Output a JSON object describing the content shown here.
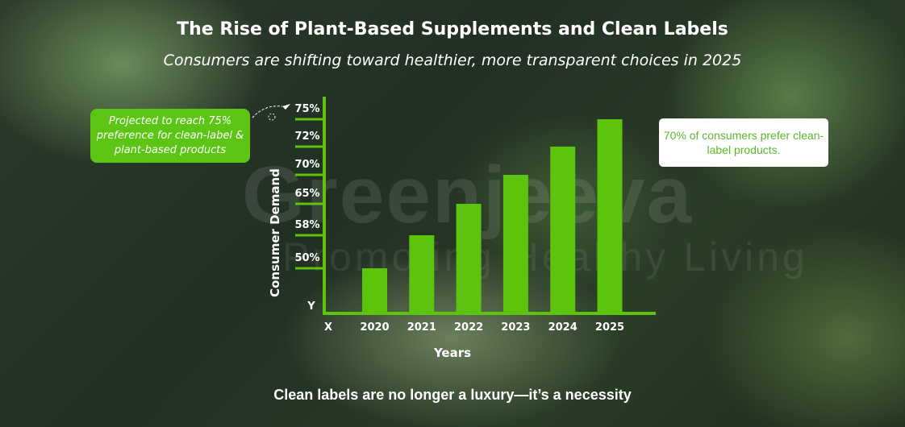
{
  "title": "The Rise of Plant-Based Supplements and Clean Labels",
  "subtitle": "Consumers are shifting toward healthier, more transparent choices in 2025",
  "footer": "Clean labels are no longer a luxury—it’s a necessity",
  "watermark": {
    "brand": "Greenjeeva",
    "tagline": "Promoting Healthy Living"
  },
  "callouts": {
    "left": "Projected to reach 75% preference for clean-label & plant-based products",
    "right": "70% of consumers prefer clean-label products."
  },
  "colors": {
    "bar": "#5cc40c",
    "axis": "#5cc40c",
    "text": "#ffffff"
  },
  "chart_data": {
    "type": "bar",
    "title": "The Rise of Plant-Based Supplements and Clean Labels",
    "xlabel": "Years",
    "ylabel": "Consumer Demand",
    "x_axis_marker": "X",
    "y_axis_marker": "Y",
    "categories": [
      "2020",
      "2021",
      "2022",
      "2023",
      "2024",
      "2025"
    ],
    "values": [
      50,
      58,
      65,
      70,
      72,
      75
    ],
    "y_tick_labels": [
      "50%",
      "58%",
      "65%",
      "70%",
      "72%",
      "75%"
    ],
    "y_scale": "categorical (evenly spaced ticks)",
    "grid": false,
    "legend": "none"
  }
}
